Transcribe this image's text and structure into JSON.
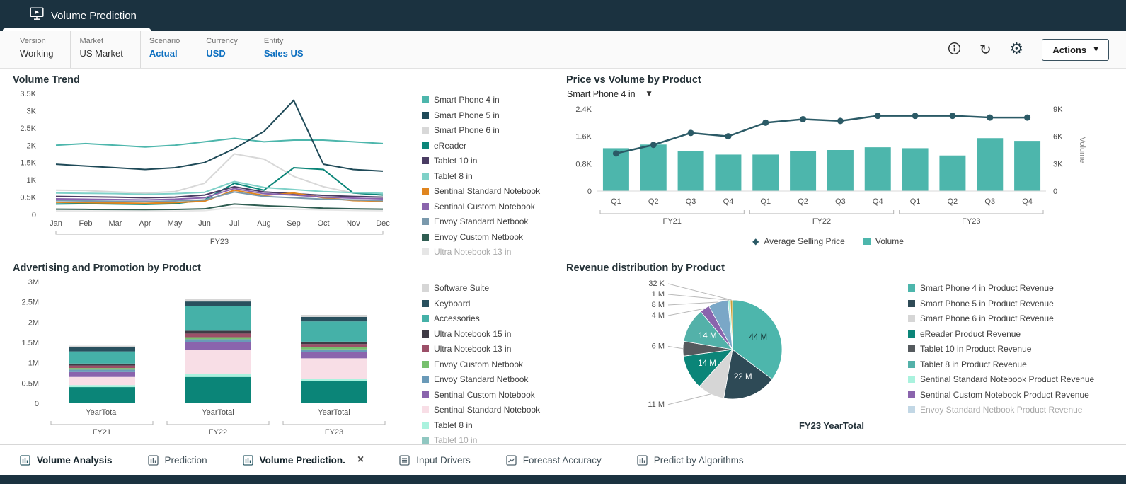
{
  "header": {
    "title": "Volume Prediction",
    "actions_label": "Actions"
  },
  "pov": {
    "items": [
      {
        "label": "Version",
        "value": "Working",
        "highlight": false
      },
      {
        "label": "Market",
        "value": "US Market",
        "highlight": false
      },
      {
        "label": "Scenario",
        "value": "Actual",
        "highlight": true
      },
      {
        "label": "Currency",
        "value": "USD",
        "highlight": true
      },
      {
        "label": "Entity",
        "value": "Sales US",
        "highlight": true
      }
    ]
  },
  "colors": {
    "header_bg": "#1B3240",
    "accent_teal": "#4DB6AC",
    "dark_line": "#2B5A66",
    "link_blue": "#0C6FC0"
  },
  "tabs": [
    {
      "label": "Volume Analysis",
      "active": true,
      "closable": false
    },
    {
      "label": "Prediction",
      "active": false,
      "closable": false
    },
    {
      "label": "Volume Prediction.",
      "active": true,
      "closable": true
    },
    {
      "label": "Input Drivers",
      "active": false,
      "closable": false
    },
    {
      "label": "Forecast Accuracy",
      "active": false,
      "closable": false
    },
    {
      "label": "Predict by Algorithms",
      "active": false,
      "closable": false
    }
  ],
  "chart_data": [
    {
      "id": "volume_trend",
      "type": "line",
      "title": "Volume Trend",
      "x": [
        "Jan",
        "Feb",
        "Mar",
        "Apr",
        "May",
        "Jun",
        "Jul",
        "Aug",
        "Sep",
        "Oct",
        "Nov",
        "Dec"
      ],
      "x_group_label": "FY23",
      "ylim": [
        0,
        3500
      ],
      "yticks": [
        0,
        500,
        1000,
        1500,
        2000,
        2500,
        3000,
        3500
      ],
      "ytick_labels": [
        "0",
        "0.5K",
        "1K",
        "1.5K",
        "2K",
        "2.5K",
        "3K",
        "3.5K"
      ],
      "series": [
        {
          "name": "Smart Phone 4 in",
          "color": "#4DB6AC",
          "values": [
            2000,
            2050,
            2000,
            1950,
            2000,
            2100,
            2200,
            2100,
            2150,
            2150,
            2100,
            2050
          ]
        },
        {
          "name": "Smart Phone 5 in",
          "color": "#1F4A58",
          "values": [
            1450,
            1400,
            1350,
            1300,
            1350,
            1500,
            1900,
            2400,
            3300,
            1450,
            1300,
            1250
          ]
        },
        {
          "name": "Smart Phone 6 in",
          "color": "#D8D8D8",
          "values": [
            700,
            690,
            650,
            620,
            660,
            900,
            1750,
            1600,
            1100,
            800,
            620,
            560
          ]
        },
        {
          "name": "eReader",
          "color": "#0B8578",
          "values": [
            300,
            310,
            300,
            290,
            310,
            420,
            900,
            700,
            1350,
            1300,
            620,
            560
          ]
        },
        {
          "name": "Tablet 10 in",
          "color": "#4A3C63",
          "values": [
            520,
            510,
            500,
            480,
            500,
            560,
            800,
            650,
            600,
            550,
            520,
            500
          ]
        },
        {
          "name": "Tablet 8 in",
          "color": "#7FD1C8",
          "values": [
            620,
            610,
            600,
            580,
            600,
            640,
            950,
            780,
            720,
            660,
            630,
            610
          ]
        },
        {
          "name": "Sentinal Standard Notebook",
          "color": "#E0851F",
          "values": [
            350,
            340,
            330,
            320,
            340,
            380,
            700,
            550,
            620,
            480,
            400,
            380
          ]
        },
        {
          "name": "Sentinal Custom Notebook",
          "color": "#8A64AD",
          "values": [
            450,
            440,
            430,
            420,
            440,
            480,
            750,
            600,
            560,
            500,
            470,
            450
          ]
        },
        {
          "name": "Envoy Standard Netbook",
          "color": "#7A99AC",
          "values": [
            400,
            390,
            380,
            370,
            390,
            420,
            650,
            520,
            480,
            440,
            420,
            400
          ]
        },
        {
          "name": "Envoy Custom Netbook",
          "color": "#2F5D52",
          "values": [
            150,
            145,
            140,
            138,
            142,
            160,
            300,
            250,
            220,
            180,
            160,
            150
          ]
        },
        {
          "name": "Ultra Notebook 13 in",
          "color": "#C9C9C9",
          "values": [
            100,
            98,
            95,
            93,
            96,
            110,
            200,
            170,
            150,
            130,
            115,
            105
          ],
          "faded": true
        }
      ]
    },
    {
      "id": "price_volume",
      "type": "combo",
      "title": "Price vs Volume by Product",
      "selector": "Smart Phone 4 in",
      "x": [
        "Q1",
        "Q2",
        "Q3",
        "Q4",
        "Q1",
        "Q2",
        "Q3",
        "Q4",
        "Q1",
        "Q2",
        "Q3",
        "Q4"
      ],
      "x_groups": [
        {
          "label": "FY21",
          "span": [
            0,
            3
          ]
        },
        {
          "label": "FY22",
          "span": [
            4,
            7
          ]
        },
        {
          "label": "FY23",
          "span": [
            8,
            11
          ]
        }
      ],
      "left_axis": {
        "ylim": [
          0,
          2400
        ],
        "ticks": [
          0,
          800,
          1600,
          2400
        ],
        "labels": [
          "0",
          "0.8K",
          "1.6K",
          "2.4K"
        ]
      },
      "right_axis": {
        "ylim": [
          0,
          9000
        ],
        "ticks": [
          0,
          3000,
          6000,
          9000
        ],
        "labels": [
          "0",
          "3K",
          "6K",
          "9K"
        ],
        "title": "Volume"
      },
      "bars": {
        "name": "Volume",
        "color": "#4DB6AC",
        "axis": "right",
        "values": [
          4700,
          5100,
          4400,
          4000,
          4000,
          4400,
          4500,
          4800,
          4700,
          3900,
          5800,
          5500
        ]
      },
      "line": {
        "name": "Average Selling Price",
        "color": "#2B5A66",
        "axis": "left",
        "values": [
          1100,
          1350,
          1700,
          1600,
          2000,
          2100,
          2050,
          2200,
          2200,
          2200,
          2150,
          2150
        ]
      }
    },
    {
      "id": "adv_promo",
      "type": "stacked_bar",
      "title": "Advertising and Promotion by Product",
      "x": [
        "YearTotal",
        "YearTotal",
        "YearTotal"
      ],
      "x_groups": [
        {
          "label": "FY21",
          "span": [
            0,
            0
          ]
        },
        {
          "label": "FY22",
          "span": [
            1,
            1
          ]
        },
        {
          "label": "FY23",
          "span": [
            2,
            2
          ]
        }
      ],
      "ylim": [
        0,
        3000000
      ],
      "yticks": [
        0,
        500000,
        1000000,
        1500000,
        2000000,
        2500000,
        3000000
      ],
      "ytick_labels": [
        "0",
        "0.5M",
        "1M",
        "1.5M",
        "2M",
        "2.5M",
        "3M"
      ],
      "series": [
        {
          "name": "Software Suite",
          "color": "#D6D6D6",
          "values": [
            40000,
            60000,
            50000
          ]
        },
        {
          "name": "Keyboard",
          "color": "#29505E",
          "values": [
            100000,
            120000,
            110000
          ]
        },
        {
          "name": "Accessories",
          "color": "#45B1A8",
          "values": [
            300000,
            600000,
            500000
          ]
        },
        {
          "name": "Ultra Notebook 15 in",
          "color": "#3F3B45",
          "values": [
            50000,
            70000,
            60000
          ]
        },
        {
          "name": "Ultra Notebook 13 in",
          "color": "#9C4F68",
          "values": [
            60000,
            90000,
            80000
          ]
        },
        {
          "name": "Envoy Custom Netbook",
          "color": "#77C06D",
          "values": [
            40000,
            50000,
            50000
          ]
        },
        {
          "name": "Envoy Standard Netbook",
          "color": "#6A9AB8",
          "values": [
            60000,
            80000,
            70000
          ]
        },
        {
          "name": "Sentinal Custom Notebook",
          "color": "#8A64AD",
          "values": [
            120000,
            180000,
            150000
          ]
        },
        {
          "name": "Sentinal Standard Notebook",
          "color": "#F8DEE6",
          "values": [
            200000,
            600000,
            500000
          ]
        },
        {
          "name": "Tablet 8 in",
          "color": "#AAF2DE",
          "values": [
            50000,
            70000,
            60000
          ]
        },
        {
          "name": "Tablet 10 in",
          "color": "#0B8578",
          "values": [
            400000,
            650000,
            550000
          ],
          "faded": true
        }
      ]
    },
    {
      "id": "revenue_pie",
      "type": "pie",
      "title": "Revenue distribution by Product",
      "footer": "FY23 YearTotal",
      "slices": [
        {
          "name": "Smart Phone 4 in Product Revenue",
          "label": "44 M",
          "value": 44,
          "color": "#4DB6AC",
          "label_pos": "inside",
          "label_color": "#173434"
        },
        {
          "name": "Smart Phone 5 in Product Revenue",
          "label": "22 M",
          "value": 22,
          "color": "#2E4A56",
          "label_pos": "inside",
          "label_color": "#ffffff"
        },
        {
          "name": "Smart Phone 6 in Product Revenue",
          "label": "11 M",
          "value": 11,
          "color": "#D6D6D6",
          "label_pos": "callout"
        },
        {
          "name": "eReader Product Revenue",
          "label": "14 M",
          "value": 14,
          "color": "#0B8578",
          "label_pos": "inside",
          "label_color": "#ffffff"
        },
        {
          "name": "Tablet 10 in Product Revenue",
          "label": "6 M",
          "value": 6,
          "color": "#555A5E",
          "label_pos": "callout"
        },
        {
          "name": "Tablet 8 in Product Revenue",
          "label": "14 M",
          "value": 14,
          "color": "#53B1A9",
          "label_pos": "inside",
          "label_color": "#ffffff"
        },
        {
          "name": "Sentinal Custom Notebook Product Revenue",
          "label": "4 M",
          "value": 4,
          "color": "#8A64AD",
          "label_pos": "callout"
        },
        {
          "name": "Envoy Standard Netbook Product Revenue",
          "label": "8 M",
          "value": 8,
          "color": "#7AA7C7",
          "label_pos": "callout",
          "faded_legend": true
        },
        {
          "name": "Sentinal Standard Notebook Product Revenue",
          "label": "1 M",
          "value": 1,
          "color": "#AAF2DE",
          "label_pos": "callout"
        },
        {
          "name": "",
          "label": "32 K",
          "value": 0.032,
          "color": "#C8A13A",
          "label_pos": "callout",
          "legend": false
        }
      ],
      "legend_order": [
        0,
        1,
        2,
        3,
        4,
        5,
        8,
        6,
        7
      ]
    }
  ]
}
